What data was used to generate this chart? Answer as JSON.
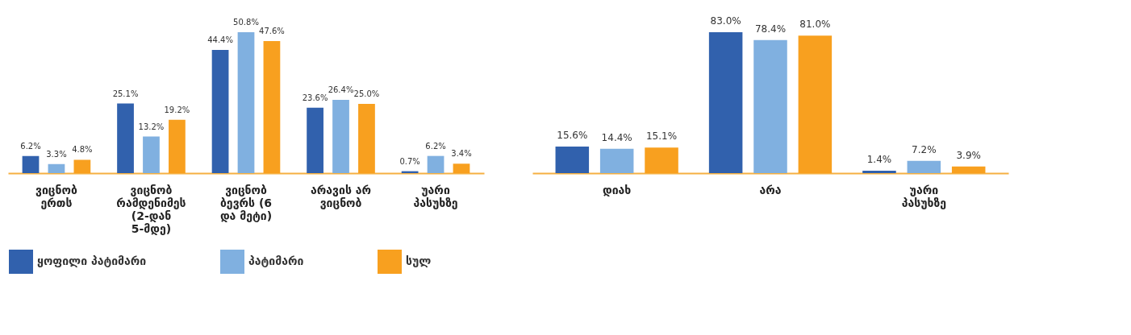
{
  "chart_data": [
    {
      "type": "bar",
      "categories": [
        "ვიცნობ\nერთს",
        "ვიცნობ\nრამდენიმეს\n(2-დან\n5-მდე)",
        "ვიცნობ\nბევრს (6\nდა მეტი)",
        "არავის არ\nვიცნობ",
        "უარი\nპასუხზე"
      ],
      "series": [
        {
          "name": "ყოფილი პატიმარი",
          "color": "#3161ad",
          "values": [
            6.2,
            25.1,
            44.4,
            23.6,
            0.7
          ],
          "value_labels": [
            "6.2%",
            "25.1%",
            "44.4%",
            "23.6%",
            "0.7%"
          ]
        },
        {
          "name": "პატიმარი",
          "color": "#80b0e0",
          "values": [
            3.3,
            13.2,
            50.8,
            26.4,
            6.2
          ],
          "value_labels": [
            "3.3%",
            "13.2%",
            "50.8%",
            "26.4%",
            "6.2%"
          ]
        },
        {
          "name": "სულ",
          "color": "#f8a01f",
          "values": [
            4.8,
            19.2,
            47.6,
            25.0,
            3.4
          ],
          "value_labels": [
            "4.8%",
            "19.2%",
            "47.6%",
            "25.0%",
            "3.4%"
          ]
        }
      ],
      "legend": "bottom",
      "grid": false
    },
    {
      "type": "bar",
      "categories": [
        "დიახ",
        "არა",
        "უარი\nპასუხზე"
      ],
      "series": [
        {
          "name": "ყოფილი პატიმარი",
          "color": "#3161ad",
          "values": [
            15.6,
            83.0,
            1.4
          ],
          "value_labels": [
            "15.6%",
            "83.0%",
            "1.4%"
          ]
        },
        {
          "name": "პატიმარი",
          "color": "#80b0e0",
          "values": [
            14.4,
            78.4,
            7.2
          ],
          "value_labels": [
            "14.4%",
            "78.4%",
            "7.2%"
          ]
        },
        {
          "name": "სულ",
          "color": "#f8a01f",
          "values": [
            15.1,
            81.0,
            3.9
          ],
          "value_labels": [
            "15.1%",
            "81.0%",
            "3.9%"
          ]
        }
      ],
      "legend": "bottom",
      "grid": false
    }
  ]
}
